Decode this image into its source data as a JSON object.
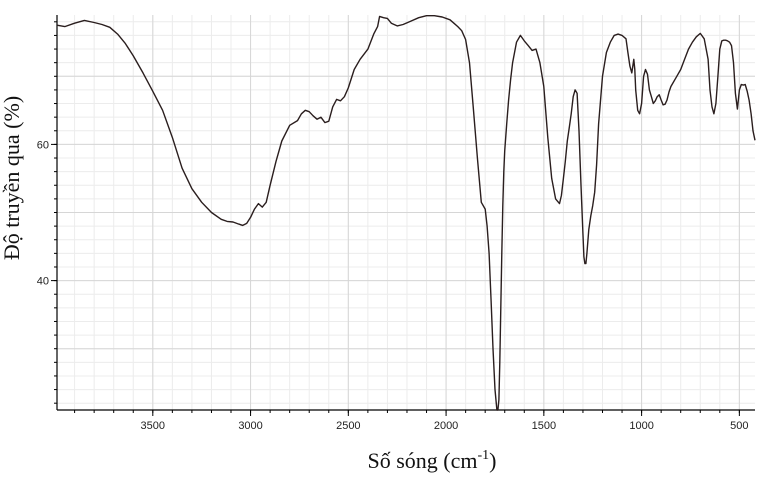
{
  "chart_data": {
    "type": "line",
    "title": "",
    "xlabel": "Số sóng (cm",
    "xlabel_sup": "-1",
    "xlabel_end": ")",
    "ylabel": "Độ truyền qua (%)",
    "x_reversed": true,
    "xlim": [
      3990,
      420
    ],
    "ylim": [
      21,
      79
    ],
    "x_ticks": [
      3500,
      3000,
      2500,
      2000,
      1500,
      1000,
      500
    ],
    "y_ticks": [
      40,
      60
    ],
    "grid": true,
    "line_color": "#2a1e1e",
    "series": [
      {
        "x": [
          3990,
          3950,
          3900,
          3850,
          3800,
          3760,
          3720,
          3680,
          3640,
          3600,
          3550,
          3500,
          3450,
          3400,
          3350,
          3300,
          3250,
          3200,
          3150,
          3120,
          3090,
          3060,
          3040,
          3020,
          3000,
          2980,
          2960,
          2940,
          2920,
          2900,
          2870,
          2840,
          2800,
          2760,
          2740,
          2720,
          2700,
          2680,
          2660,
          2640,
          2620,
          2600,
          2580,
          2560,
          2540,
          2520,
          2500,
          2470,
          2440,
          2400,
          2370,
          2350,
          2340,
          2320,
          2300,
          2280,
          2250,
          2220,
          2180,
          2140,
          2100,
          2060,
          2020,
          1980,
          1960,
          1940,
          1920,
          1900,
          1880,
          1860,
          1840,
          1820,
          1800,
          1790,
          1780,
          1770,
          1760,
          1750,
          1740,
          1735,
          1730,
          1725,
          1720,
          1715,
          1710,
          1705,
          1700,
          1690,
          1680,
          1670,
          1660,
          1640,
          1620,
          1600,
          1580,
          1560,
          1540,
          1520,
          1500,
          1480,
          1460,
          1440,
          1420,
          1410,
          1400,
          1390,
          1380,
          1370,
          1360,
          1350,
          1340,
          1330,
          1320,
          1310,
          1300,
          1295,
          1290,
          1285,
          1280,
          1270,
          1260,
          1250,
          1240,
          1230,
          1220,
          1200,
          1180,
          1160,
          1140,
          1120,
          1100,
          1080,
          1070,
          1060,
          1050,
          1045,
          1040,
          1035,
          1030,
          1020,
          1010,
          1000,
          990,
          980,
          970,
          960,
          950,
          940,
          930,
          920,
          910,
          900,
          890,
          880,
          870,
          860,
          850,
          820,
          800,
          780,
          760,
          740,
          720,
          700,
          680,
          660,
          650,
          640,
          630,
          620,
          610,
          600,
          590,
          580,
          570,
          560,
          550,
          540,
          530,
          520,
          510,
          500,
          490,
          480,
          470,
          460,
          450,
          440,
          430,
          420
        ],
        "y": [
          77.5,
          77.3,
          77.8,
          78.2,
          77.9,
          77.6,
          77.2,
          76.2,
          74.8,
          73,
          70.5,
          67.8,
          65,
          61,
          56.5,
          53.5,
          51.5,
          50,
          49,
          48.7,
          48.6,
          48.3,
          48.1,
          48.4,
          49.3,
          50.5,
          51.3,
          50.8,
          51.5,
          54,
          57.5,
          60.5,
          62.8,
          63.5,
          64.5,
          65,
          64.8,
          64.2,
          63.7,
          64,
          63.2,
          63.4,
          65.5,
          66.6,
          66.4,
          67,
          68.3,
          71,
          72.5,
          74,
          76.2,
          77.3,
          78.8,
          78.6,
          78.5,
          77.8,
          77.4,
          77.6,
          78.1,
          78.6,
          78.9,
          78.9,
          78.7,
          78.3,
          77.8,
          77.3,
          76.7,
          75.4,
          72,
          65,
          58,
          51.5,
          50.5,
          48,
          44,
          37,
          30,
          24,
          20.5,
          20.5,
          22.5,
          28,
          36,
          44,
          51,
          56,
          59,
          63,
          66.5,
          69.5,
          72,
          75,
          76,
          75.2,
          74.5,
          73.8,
          74,
          72,
          68.5,
          61,
          55,
          52,
          51.3,
          52.5,
          55,
          57.5,
          60.5,
          62.5,
          64.5,
          67,
          68,
          67.5,
          62,
          54,
          47,
          43.5,
          42.5,
          42.5,
          44,
          47.5,
          49.5,
          51,
          53,
          57,
          63,
          70,
          73.5,
          75,
          76,
          76.2,
          76,
          75.5,
          73.5,
          71.5,
          70.5,
          71.5,
          72.5,
          71,
          68,
          65,
          64.5,
          66,
          70,
          71,
          70.3,
          68,
          67,
          66,
          66.4,
          67,
          67.3,
          66.5,
          65.8,
          65.9,
          66.5,
          67.7,
          68.5,
          70,
          71,
          72.5,
          74,
          75,
          75.8,
          76.3,
          75.5,
          72.5,
          68,
          65.5,
          64.5,
          66,
          70,
          74,
          75.2,
          75.3,
          75.3,
          75.2,
          75,
          74.5,
          72,
          67.5,
          65.2,
          68,
          68.8,
          68.7,
          68.8,
          67.8,
          66.5,
          64.5,
          62,
          60.6
        ]
      }
    ]
  }
}
